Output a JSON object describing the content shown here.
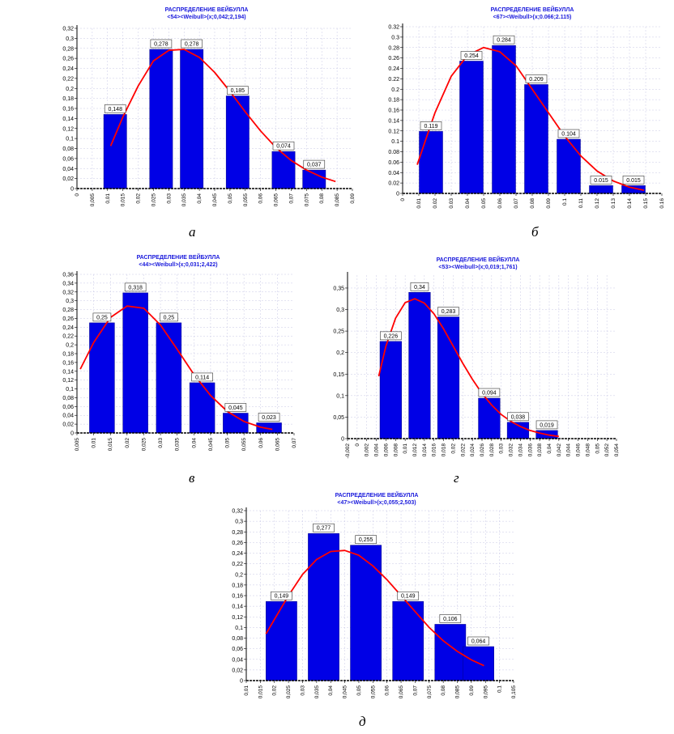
{
  "panel_letters": [
    "а",
    "б",
    "в",
    "г",
    "д"
  ],
  "chart_data": [
    {
      "type": "bar",
      "title": "РАСПРЕДЕЛЕНИЕ ВЕЙБУЛЛА",
      "subtitle": "<54><Weibull>(x;0,042;2,194)",
      "categories": [
        0.0125,
        0.0275,
        0.0375,
        0.0525,
        0.0675,
        0.0775
      ],
      "values": [
        0.148,
        0.278,
        0.278,
        0.185,
        0.074,
        0.037
      ],
      "data_labels": [
        "0,148",
        "0,278",
        "0,278",
        "0,185",
        "0,074",
        "0,037"
      ],
      "bar_width": 0.0075,
      "xlim": [
        0,
        0.09
      ],
      "ylim": [
        0,
        0.32
      ],
      "x_ticks": [
        "0",
        "0,005",
        "0,01",
        "0,015",
        "0,02",
        "0,025",
        "0,03",
        "0,035",
        "0,04",
        "0,045",
        "0,05",
        "0,055",
        "0,06",
        "0,065",
        "0,07",
        "0,075",
        "0,08",
        "0,085",
        "0,09"
      ],
      "y_ticks": [
        "0",
        "0,02",
        "0,04",
        "0,06",
        "0,08",
        "0,1",
        "0,12",
        "0,14",
        "0,16",
        "0,18",
        "0,2",
        "0,22",
        "0,24",
        "0,26",
        "0,28",
        "0,3",
        "0,32"
      ],
      "y_max_tick": 0.32,
      "curve": {
        "x": [
          0.011,
          0.015,
          0.02,
          0.025,
          0.03,
          0.035,
          0.04,
          0.045,
          0.05,
          0.055,
          0.06,
          0.065,
          0.07,
          0.075,
          0.08,
          0.0845
        ],
        "y": [
          0.085,
          0.143,
          0.205,
          0.255,
          0.276,
          0.278,
          0.262,
          0.232,
          0.194,
          0.153,
          0.115,
          0.082,
          0.056,
          0.037,
          0.023,
          0.014
        ]
      },
      "grid": true,
      "colors": {
        "bar": "#0000e6",
        "curve": "#ff0000",
        "title": "#1a1adc"
      }
    },
    {
      "type": "bar",
      "title": "РАСПРЕДЕЛЕНИЕ ВЕЙБУЛЛА",
      "subtitle": "<67><Weibull>(x;0.066;2.115)",
      "categories": [
        0.0175,
        0.0425,
        0.0625,
        0.0825,
        0.1025,
        0.1225,
        0.1425
      ],
      "values": [
        0.119,
        0.254,
        0.284,
        0.209,
        0.104,
        0.015,
        0.015
      ],
      "data_labels": [
        "0.119",
        "0.254",
        "0.284",
        "0.209",
        "0.104",
        "0.015",
        "0.015"
      ],
      "bar_width": 0.0145,
      "xlim": [
        0,
        0.16
      ],
      "ylim": [
        0,
        0.32
      ],
      "x_ticks": [
        "0",
        "0.01",
        "0.02",
        "0.03",
        "0.04",
        "0.05",
        "0.06",
        "0.07",
        "0.08",
        "0.09",
        "0.1",
        "0.11",
        "0.12",
        "0.13",
        "0.14",
        "0.15",
        "0.16"
      ],
      "y_ticks": [
        "0",
        "0.02",
        "0.04",
        "0.06",
        "0.08",
        "0.1",
        "0.12",
        "0.14",
        "0.16",
        "0.18",
        "0.2",
        "0.22",
        "0.24",
        "0.26",
        "0.28",
        "0.3",
        "0.32"
      ],
      "y_max_tick": 0.32,
      "curve": {
        "x": [
          0.009,
          0.015,
          0.02,
          0.03,
          0.04,
          0.05,
          0.06,
          0.07,
          0.08,
          0.09,
          0.1,
          0.11,
          0.12,
          0.13,
          0.14,
          0.149
        ],
        "y": [
          0.055,
          0.11,
          0.155,
          0.225,
          0.265,
          0.28,
          0.272,
          0.245,
          0.2,
          0.155,
          0.11,
          0.072,
          0.043,
          0.024,
          0.012,
          0.006
        ]
      },
      "grid": true,
      "colors": {
        "bar": "#0000e6",
        "curve": "#ff0000",
        "title": "#1a1adc"
      }
    },
    {
      "type": "bar",
      "title": "РАСПРЕДЕЛЕНИЕ ВЕЙБУЛЛА",
      "subtitle": "<44><Weibull>(x;0,031;2,422)",
      "categories": [
        0.0125,
        0.0225,
        0.0325,
        0.0425,
        0.0525,
        0.0625
      ],
      "values": [
        0.25,
        0.318,
        0.25,
        0.114,
        0.045,
        0.023
      ],
      "data_labels": [
        "0,25",
        "0,318",
        "0,25",
        "0,114",
        "0,045",
        "0,023"
      ],
      "bar_width": 0.0075,
      "xlim": [
        0.005,
        0.07
      ],
      "ylim": [
        0,
        0.36
      ],
      "x_ticks": [
        "0,005",
        "0,01",
        "0,015",
        "0,02",
        "0,025",
        "0,03",
        "0,035",
        "0,04",
        "0,045",
        "0,05",
        "0,055",
        "0,06",
        "0,065",
        "0,07"
      ],
      "y_ticks": [
        "0",
        "0,02",
        "0,04",
        "0,06",
        "0,08",
        "0,1",
        "0,12",
        "0,14",
        "0,16",
        "0,18",
        "0,2",
        "0,22",
        "0,24",
        "0,26",
        "0,28",
        "0,3",
        "0,32",
        "0,34",
        "0,36"
      ],
      "y_max_tick": 0.36,
      "curve": {
        "x": [
          0.006,
          0.01,
          0.015,
          0.02,
          0.025,
          0.03,
          0.035,
          0.04,
          0.045,
          0.05,
          0.055,
          0.06,
          0.0635
        ],
        "y": [
          0.145,
          0.205,
          0.262,
          0.288,
          0.283,
          0.245,
          0.19,
          0.133,
          0.085,
          0.049,
          0.026,
          0.013,
          0.008
        ]
      },
      "grid": true,
      "colors": {
        "bar": "#0000e6",
        "curve": "#ff0000",
        "title": "#1a1adc"
      }
    },
    {
      "type": "bar",
      "title": "РАСПРЕДЕЛЕНИЕ ВЕЙБУЛЛА",
      "subtitle": "<53><Weibull>(x;0,019;1,761)",
      "categories": [
        0.007,
        0.013,
        0.019,
        0.0275,
        0.0335,
        0.0395
      ],
      "values": [
        0.226,
        0.34,
        0.283,
        0.094,
        0.038,
        0.019
      ],
      "data_labels": [
        "0,226",
        "0,34",
        "0,283",
        "0,094",
        "0,038",
        "0,019"
      ],
      "bar_width": 0.0045,
      "xlim": [
        -0.002,
        0.054
      ],
      "ylim": [
        0,
        0.38
      ],
      "x_ticks": [
        "-0,002",
        "0",
        "0,002",
        "0,004",
        "0,006",
        "0,008",
        "0,01",
        "0,012",
        "0,014",
        "0,016",
        "0,018",
        "0,02",
        "0,022",
        "0,024",
        "0,026",
        "0,028",
        "0,03",
        "0,032",
        "0,034",
        "0,036",
        "0,038",
        "0,04",
        "0,042",
        "0,044",
        "0,046",
        "0,048",
        "0,05",
        "0,052",
        "0,054"
      ],
      "y_ticks": [
        "0",
        "0,05",
        "0,1",
        "0,15",
        "0,2",
        "0,25",
        "0,3",
        "0,35"
      ],
      "y_max_tick": 0.35,
      "curve": {
        "x": [
          0.0045,
          0.006,
          0.008,
          0.01,
          0.012,
          0.014,
          0.016,
          0.018,
          0.02,
          0.022,
          0.024,
          0.026,
          0.028,
          0.03,
          0.032,
          0.034,
          0.036,
          0.038,
          0.04,
          0.042
        ],
        "y": [
          0.145,
          0.215,
          0.28,
          0.316,
          0.325,
          0.315,
          0.29,
          0.255,
          0.215,
          0.175,
          0.138,
          0.105,
          0.078,
          0.056,
          0.04,
          0.028,
          0.019,
          0.013,
          0.008,
          0.005
        ]
      },
      "grid": true,
      "colors": {
        "bar": "#0000e6",
        "curve": "#ff0000",
        "title": "#1a1adc"
      }
    },
    {
      "type": "bar",
      "title": "РАСПРЕДЕЛЕНИЕ ВЕЙБУЛЛА",
      "subtitle": "<47><Weibull>(x;0,055;2,503)",
      "categories": [
        0.0225,
        0.0375,
        0.0525,
        0.0675,
        0.0825,
        0.0925
      ],
      "values": [
        0.149,
        0.277,
        0.255,
        0.149,
        0.106,
        0.064
      ],
      "data_labels": [
        "0,149",
        "0,277",
        "0,255",
        "0,149",
        "0,106",
        "0,064"
      ],
      "bar_width": 0.011,
      "xlim": [
        0.01,
        0.105
      ],
      "ylim": [
        0,
        0.32
      ],
      "x_ticks": [
        "0,01",
        "0,015",
        "0,02",
        "0,025",
        "0,03",
        "0,035",
        "0,04",
        "0,045",
        "0,05",
        "0,055",
        "0,06",
        "0,065",
        "0,07",
        "0,075",
        "0,08",
        "0,085",
        "0,09",
        "0,095",
        "0,1",
        "0,105"
      ],
      "y_ticks": [
        "0",
        "0,02",
        "0,04",
        "0,06",
        "0,08",
        "0,1",
        "0,12",
        "0,14",
        "0,16",
        "0,18",
        "0,2",
        "0,22",
        "0,24",
        "0,26",
        "0,28",
        "0,3",
        "0,32"
      ],
      "y_max_tick": 0.32,
      "curve": {
        "x": [
          0.017,
          0.02,
          0.025,
          0.03,
          0.035,
          0.04,
          0.045,
          0.05,
          0.055,
          0.06,
          0.065,
          0.07,
          0.075,
          0.08,
          0.085,
          0.09,
          0.0945
        ],
        "y": [
          0.088,
          0.115,
          0.16,
          0.2,
          0.228,
          0.243,
          0.245,
          0.236,
          0.216,
          0.19,
          0.16,
          0.13,
          0.1,
          0.075,
          0.055,
          0.039,
          0.028
        ]
      },
      "grid": true,
      "colors": {
        "bar": "#0000e6",
        "curve": "#ff0000",
        "title": "#1a1adc"
      }
    }
  ]
}
